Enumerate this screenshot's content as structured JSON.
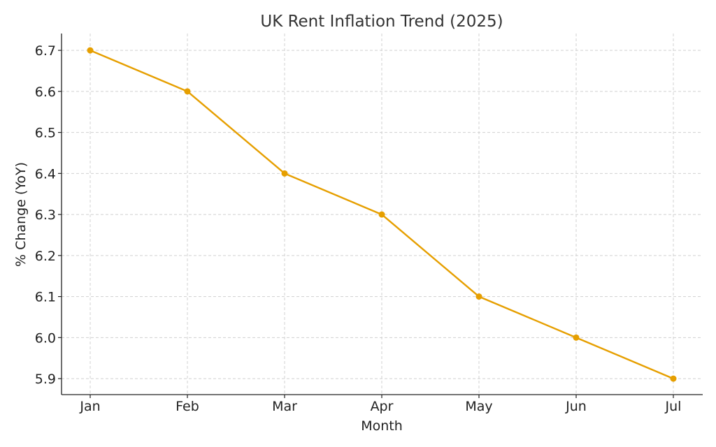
{
  "chart_data": {
    "type": "line",
    "title": "UK Rent Inflation Trend (2025)",
    "xlabel": "Month",
    "ylabel": "% Change (YoY)",
    "categories": [
      "Jan",
      "Feb",
      "Mar",
      "Apr",
      "May",
      "Jun",
      "Jul"
    ],
    "series": [
      {
        "name": "% Change (YoY)",
        "values": [
          6.7,
          6.6,
          6.4,
          6.3,
          6.1,
          6.0,
          5.9
        ],
        "color": "#E69F00",
        "marker": "circle"
      }
    ],
    "yticks": [
      "5.9",
      "6.0",
      "6.1",
      "6.2",
      "6.3",
      "6.4",
      "6.5",
      "6.6",
      "6.7"
    ],
    "ylim": [
      5.861,
      6.741
    ],
    "grid": true,
    "legend": "none"
  }
}
